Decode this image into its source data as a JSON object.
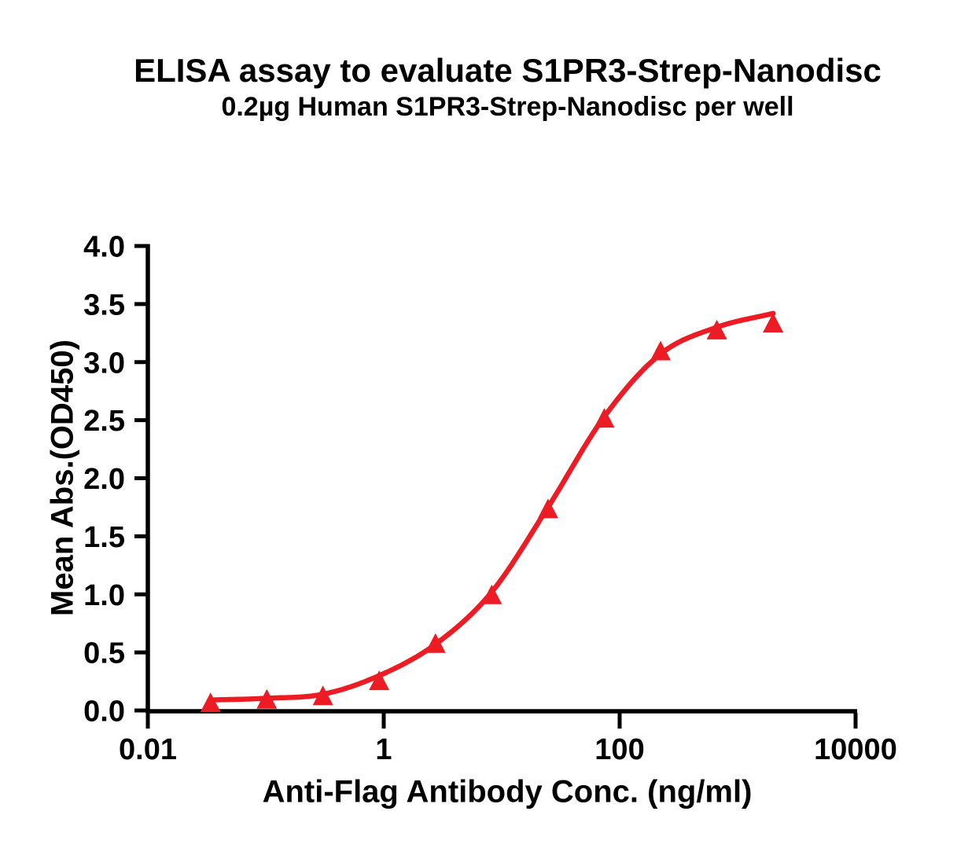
{
  "page": {
    "title": "ELISA assay to evaluate S1PR3-Strep-Nanodisc",
    "subtitle": "0.2µg Human S1PR3-Strep-Nanodisc per well"
  },
  "chart_data": {
    "type": "line",
    "title": "ELISA assay to evaluate S1PR3-Strep-Nanodisc",
    "subtitle": "0.2µg Human S1PR3-Strep-Nanodisc per well",
    "xlabel": "Anti-Flag Antibody Conc. (ng/ml)",
    "ylabel": "Mean Abs.(OD450)",
    "x_scale": "log10",
    "xlim": [
      0.01,
      10000
    ],
    "ylim": [
      0.0,
      4.0
    ],
    "grid": false,
    "legend_position": "none",
    "x_ticks": {
      "values": [
        0.01,
        1,
        100,
        10000
      ],
      "labels": [
        "0.01",
        "1",
        "100",
        "10000"
      ]
    },
    "y_ticks": {
      "values": [
        0.0,
        0.5,
        1.0,
        1.5,
        2.0,
        2.5,
        3.0,
        3.5,
        4.0
      ],
      "labels": [
        "0.0",
        "0.5",
        "1.0",
        "1.5",
        "2.0",
        "2.5",
        "3.0",
        "3.5",
        "4.0"
      ]
    },
    "series": [
      {
        "name": "Human S1PR3-Strep-Nanodisc",
        "marker": "triangle-up",
        "color": "#ED1C24",
        "x": [
          0.034,
          0.102,
          0.305,
          0.914,
          2.743,
          8.23,
          24.69,
          74.07,
          222.2,
          666.7,
          2000
        ],
        "y": [
          0.07,
          0.1,
          0.13,
          0.26,
          0.58,
          1.0,
          1.74,
          2.52,
          3.1,
          3.28,
          3.34
        ],
        "fit_curve_y": [
          0.09,
          0.105,
          0.14,
          0.3,
          0.57,
          1.02,
          1.75,
          2.53,
          3.07,
          3.3,
          3.42
        ]
      }
    ]
  },
  "style": {
    "curve_color": "#ED1C24",
    "axis_color": "#000000",
    "background_color": "#FFFFFF"
  }
}
